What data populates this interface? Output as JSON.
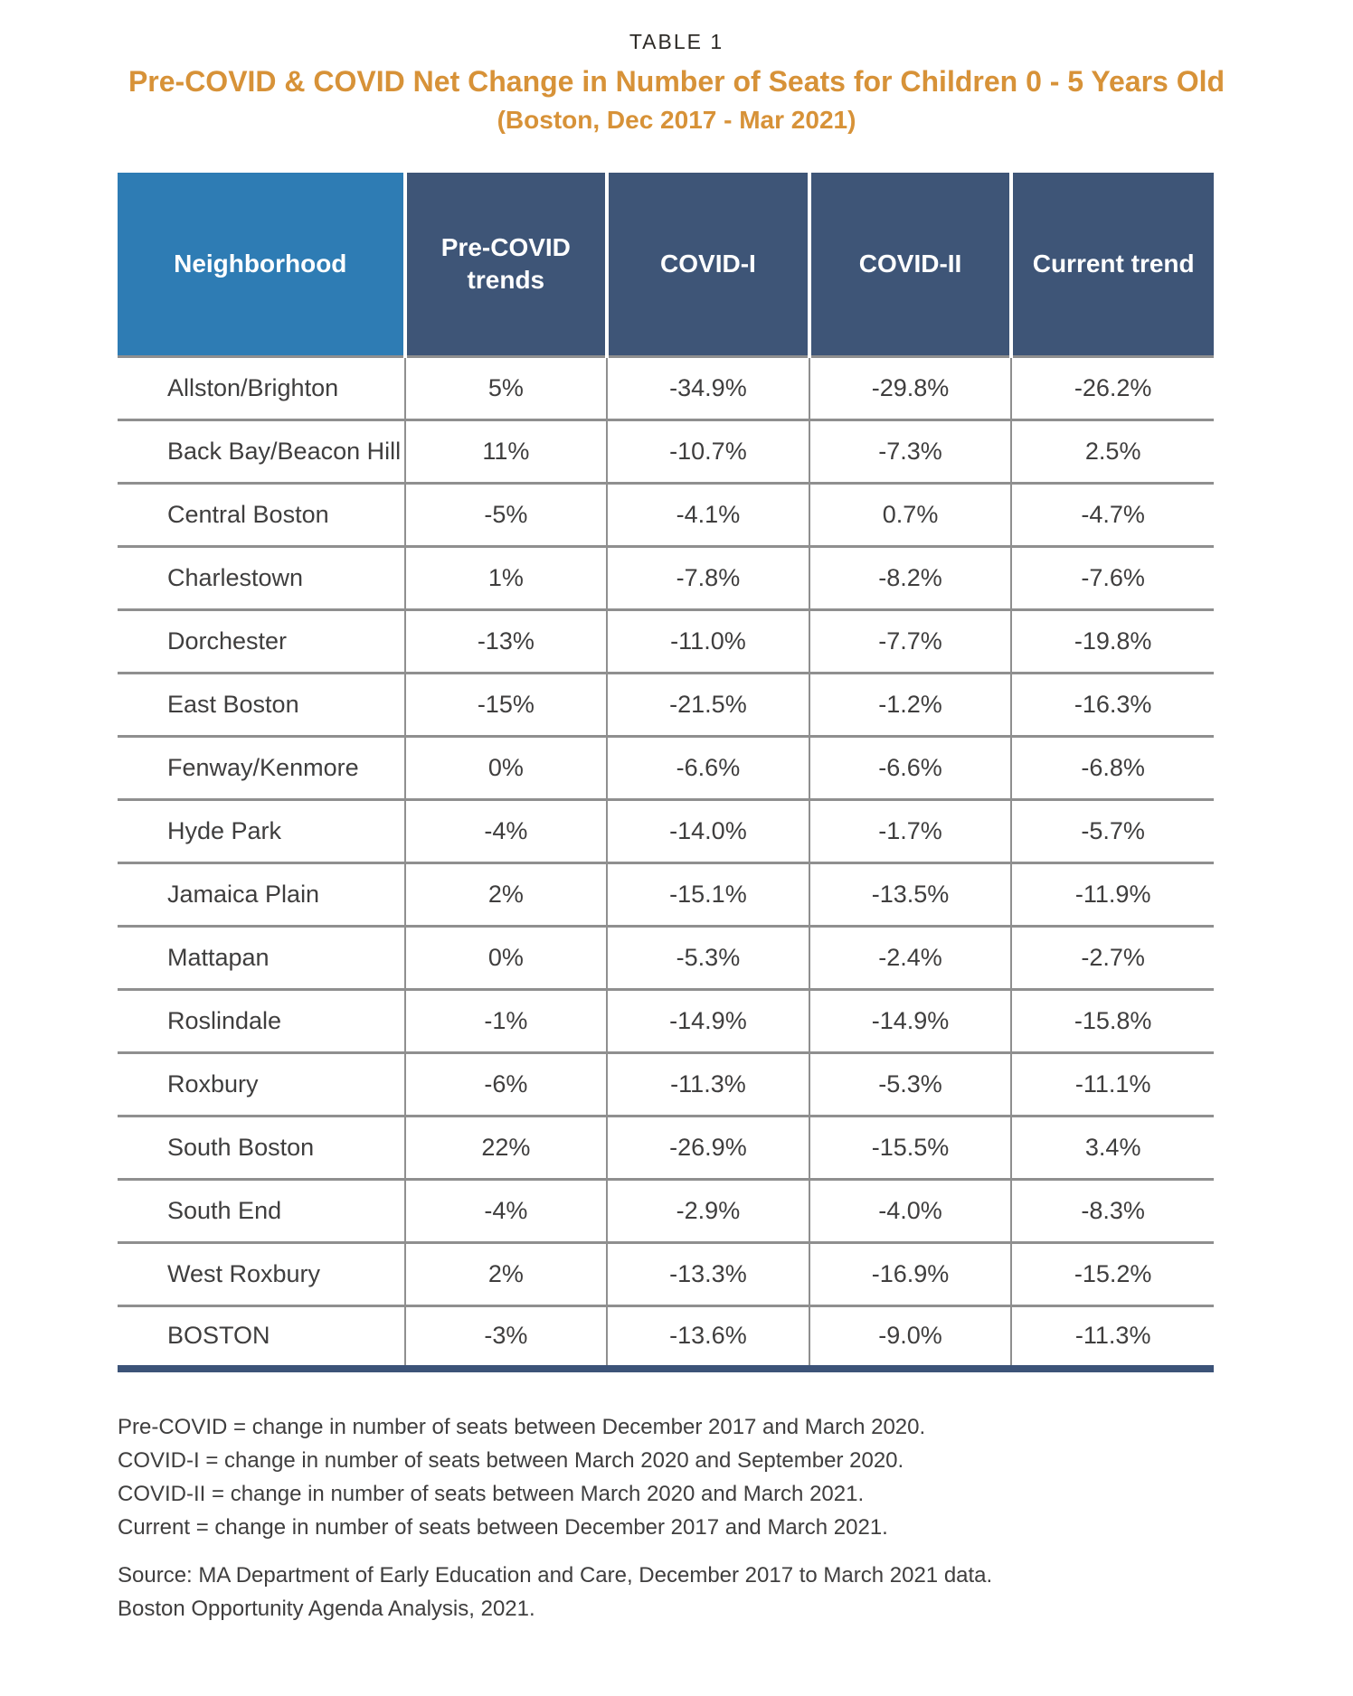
{
  "page": {
    "eyebrow": "TABLE 1",
    "title": "Pre-COVID & COVID Net Change in Number of Seats for Children 0 - 5 Years Old",
    "subtitle": "(Boston, Dec 2017 - Mar 2021)"
  },
  "chart_data": {
    "type": "table",
    "title": "Pre-COVID & COVID Net Change in Number of Seats for Children 0 - 5 Years Old",
    "subtitle": "(Boston, Dec 2017 - Mar 2021)",
    "columns": [
      "Neighborhood",
      "Pre-COVID trends",
      "COVID-I",
      "COVID-II",
      "Current trend"
    ],
    "rows": [
      [
        "Allston/Brighton",
        "5%",
        "-34.9%",
        "-29.8%",
        "-26.2%"
      ],
      [
        "Back Bay/Beacon Hill",
        "11%",
        "-10.7%",
        "-7.3%",
        "2.5%"
      ],
      [
        "Central Boston",
        "-5%",
        "-4.1%",
        "0.7%",
        "-4.7%"
      ],
      [
        "Charlestown",
        "1%",
        "-7.8%",
        "-8.2%",
        "-7.6%"
      ],
      [
        "Dorchester",
        "-13%",
        "-11.0%",
        "-7.7%",
        "-19.8%"
      ],
      [
        "East Boston",
        "-15%",
        "-21.5%",
        "-1.2%",
        "-16.3%"
      ],
      [
        "Fenway/Kenmore",
        "0%",
        "-6.6%",
        "-6.6%",
        "-6.8%"
      ],
      [
        "Hyde Park",
        "-4%",
        "-14.0%",
        "-1.7%",
        "-5.7%"
      ],
      [
        "Jamaica Plain",
        "2%",
        "-15.1%",
        "-13.5%",
        "-11.9%"
      ],
      [
        "Mattapan",
        "0%",
        "-5.3%",
        "-2.4%",
        "-2.7%"
      ],
      [
        "Roslindale",
        "-1%",
        "-14.9%",
        "-14.9%",
        "-15.8%"
      ],
      [
        "Roxbury",
        "-6%",
        "-11.3%",
        "-5.3%",
        "-11.1%"
      ],
      [
        "South Boston",
        "22%",
        "-26.9%",
        "-15.5%",
        "3.4%"
      ],
      [
        "South End",
        "-4%",
        "-2.9%",
        "-4.0%",
        "-8.3%"
      ],
      [
        "West Roxbury",
        "2%",
        "-13.3%",
        "-16.9%",
        "-15.2%"
      ],
      [
        "BOSTON",
        "-3%",
        "-13.6%",
        "-9.0%",
        "-11.3%"
      ]
    ]
  },
  "footnotes": [
    "Pre-COVID = change in number of seats between December 2017 and March 2020.",
    "COVID-I = change in number of seats between March 2020 and September 2020.",
    "COVID-II = change in number of seats between March 2020 and March 2021.",
    "Current = change in number of seats between December 2017 and  March 2021."
  ],
  "sources": [
    "Source: MA Department of Early Education and Care, December 2017 to March 2021 data.",
    "Boston Opportunity Agenda Analysis, 2021."
  ],
  "colors": {
    "title_orange": "#D79238",
    "header_navy": "#3E5577",
    "header_blue": "#2E7CB4",
    "grid_line": "#8F8F8F",
    "body_text": "#3F3E3E",
    "bottom_bar": "#3C5378"
  }
}
